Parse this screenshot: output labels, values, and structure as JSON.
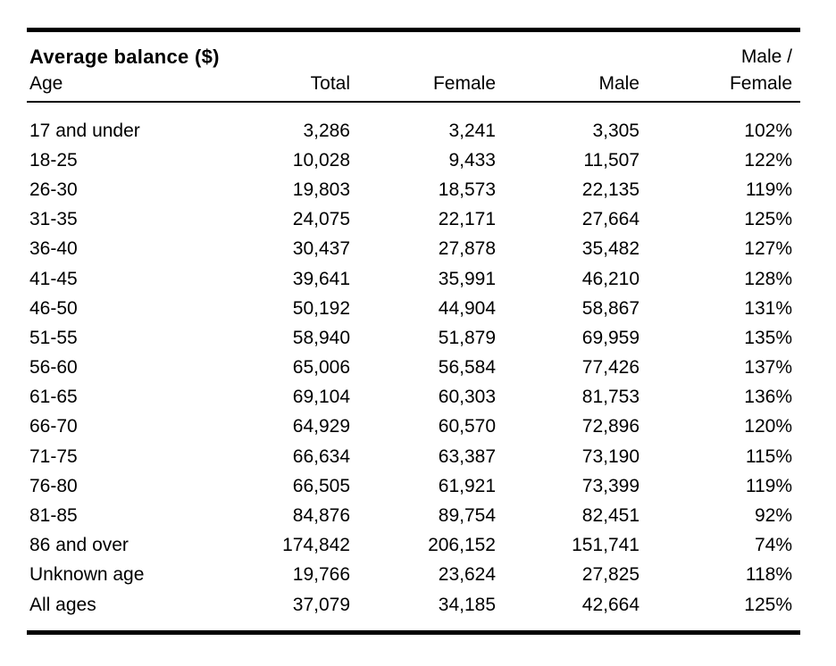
{
  "colors": {
    "background": "#ffffff",
    "text": "#000000",
    "rule": "#000000"
  },
  "table": {
    "title": "Average balance ($)",
    "header": {
      "age": "Age",
      "total": "Total",
      "female": "Female",
      "male": "Male",
      "ratio_line1": "Male /",
      "ratio_line2": "Female"
    },
    "rows": [
      {
        "age": "17 and under",
        "total": "3,286",
        "female": "3,241",
        "male": "3,305",
        "ratio": "102%"
      },
      {
        "age": "18-25",
        "total": "10,028",
        "female": "9,433",
        "male": "11,507",
        "ratio": "122%"
      },
      {
        "age": "26-30",
        "total": "19,803",
        "female": "18,573",
        "male": "22,135",
        "ratio": "119%"
      },
      {
        "age": "31-35",
        "total": "24,075",
        "female": "22,171",
        "male": "27,664",
        "ratio": "125%"
      },
      {
        "age": "36-40",
        "total": "30,437",
        "female": "27,878",
        "male": "35,482",
        "ratio": "127%"
      },
      {
        "age": "41-45",
        "total": "39,641",
        "female": "35,991",
        "male": "46,210",
        "ratio": "128%"
      },
      {
        "age": "46-50",
        "total": "50,192",
        "female": "44,904",
        "male": "58,867",
        "ratio": "131%"
      },
      {
        "age": "51-55",
        "total": "58,940",
        "female": "51,879",
        "male": "69,959",
        "ratio": "135%"
      },
      {
        "age": "56-60",
        "total": "65,006",
        "female": "56,584",
        "male": "77,426",
        "ratio": "137%"
      },
      {
        "age": "61-65",
        "total": "69,104",
        "female": "60,303",
        "male": "81,753",
        "ratio": "136%"
      },
      {
        "age": "66-70",
        "total": "64,929",
        "female": "60,570",
        "male": "72,896",
        "ratio": "120%"
      },
      {
        "age": "71-75",
        "total": "66,634",
        "female": "63,387",
        "male": "73,190",
        "ratio": "115%"
      },
      {
        "age": "76-80",
        "total": "66,505",
        "female": "61,921",
        "male": "73,399",
        "ratio": "119%"
      },
      {
        "age": "81-85",
        "total": "84,876",
        "female": "89,754",
        "male": "82,451",
        "ratio": "92%"
      },
      {
        "age": "86 and over",
        "total": "174,842",
        "female": "206,152",
        "male": "151,741",
        "ratio": "74%"
      },
      {
        "age": "Unknown age",
        "total": "19,766",
        "female": "23,624",
        "male": "27,825",
        "ratio": "118%"
      },
      {
        "age": "All ages",
        "total": "37,079",
        "female": "34,185",
        "male": "42,664",
        "ratio": "125%"
      }
    ]
  },
  "chart_data": {
    "type": "table",
    "title": "Average balance ($)",
    "columns": [
      "Age",
      "Total",
      "Female",
      "Male",
      "Male / Female"
    ],
    "rows": [
      [
        "17 and under",
        3286,
        3241,
        3305,
        "102%"
      ],
      [
        "18-25",
        10028,
        9433,
        11507,
        "122%"
      ],
      [
        "26-30",
        19803,
        18573,
        22135,
        "119%"
      ],
      [
        "31-35",
        24075,
        22171,
        27664,
        "125%"
      ],
      [
        "36-40",
        30437,
        27878,
        35482,
        "127%"
      ],
      [
        "41-45",
        39641,
        35991,
        46210,
        "128%"
      ],
      [
        "46-50",
        50192,
        44904,
        58867,
        "131%"
      ],
      [
        "51-55",
        58940,
        51879,
        69959,
        "135%"
      ],
      [
        "56-60",
        65006,
        56584,
        77426,
        "137%"
      ],
      [
        "61-65",
        69104,
        60303,
        81753,
        "136%"
      ],
      [
        "66-70",
        64929,
        60570,
        72896,
        "120%"
      ],
      [
        "71-75",
        66634,
        63387,
        73190,
        "115%"
      ],
      [
        "76-80",
        66505,
        61921,
        73399,
        "119%"
      ],
      [
        "81-85",
        84876,
        89754,
        82451,
        "92%"
      ],
      [
        "86 and over",
        174842,
        206152,
        151741,
        "74%"
      ],
      [
        "Unknown age",
        19766,
        23624,
        27825,
        "118%"
      ],
      [
        "All ages",
        37079,
        34185,
        42664,
        "125%"
      ]
    ]
  }
}
